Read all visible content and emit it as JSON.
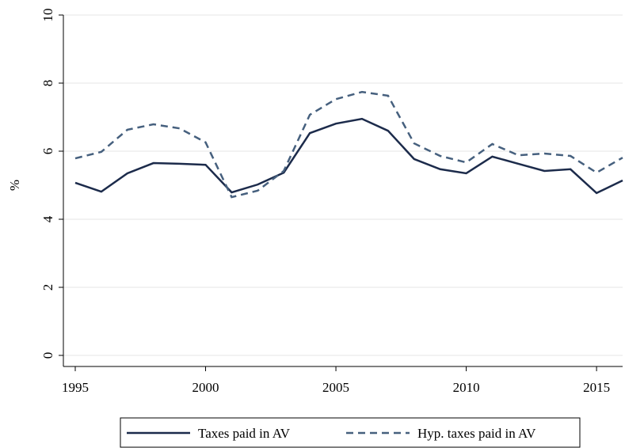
{
  "chart_data": {
    "type": "line",
    "y_label": "%",
    "x": [
      1995,
      1996,
      1997,
      1998,
      1999,
      2000,
      2001,
      2002,
      2003,
      2004,
      2005,
      2006,
      2007,
      2008,
      2009,
      2010,
      2011,
      2012,
      2013,
      2014,
      2015,
      2016
    ],
    "series": [
      {
        "name": "Taxes paid in AV",
        "color": "#1c2b4b",
        "dash": "solid",
        "values": [
          5.07,
          4.81,
          5.35,
          5.65,
          5.63,
          5.6,
          4.79,
          5.02,
          5.37,
          6.53,
          6.81,
          6.95,
          6.6,
          5.77,
          5.47,
          5.35,
          5.84,
          5.63,
          5.42,
          5.47,
          4.77,
          5.14
        ]
      },
      {
        "name": "Hyp. taxes paid in AV",
        "color": "#46607e",
        "dash": "dashed",
        "values": [
          5.79,
          5.98,
          6.63,
          6.79,
          6.67,
          6.26,
          4.65,
          4.84,
          5.42,
          7.07,
          7.53,
          7.74,
          7.63,
          6.23,
          5.86,
          5.67,
          6.21,
          5.88,
          5.93,
          5.86,
          5.37,
          5.81
        ]
      }
    ],
    "xlim": [
      1995,
      2016
    ],
    "xticks": [
      1995,
      2000,
      2005,
      2010,
      2015
    ],
    "ylim": [
      0,
      10
    ],
    "yticks": [
      0,
      2,
      4,
      6,
      8,
      10
    ],
    "grid": true,
    "legend": "bottom"
  }
}
